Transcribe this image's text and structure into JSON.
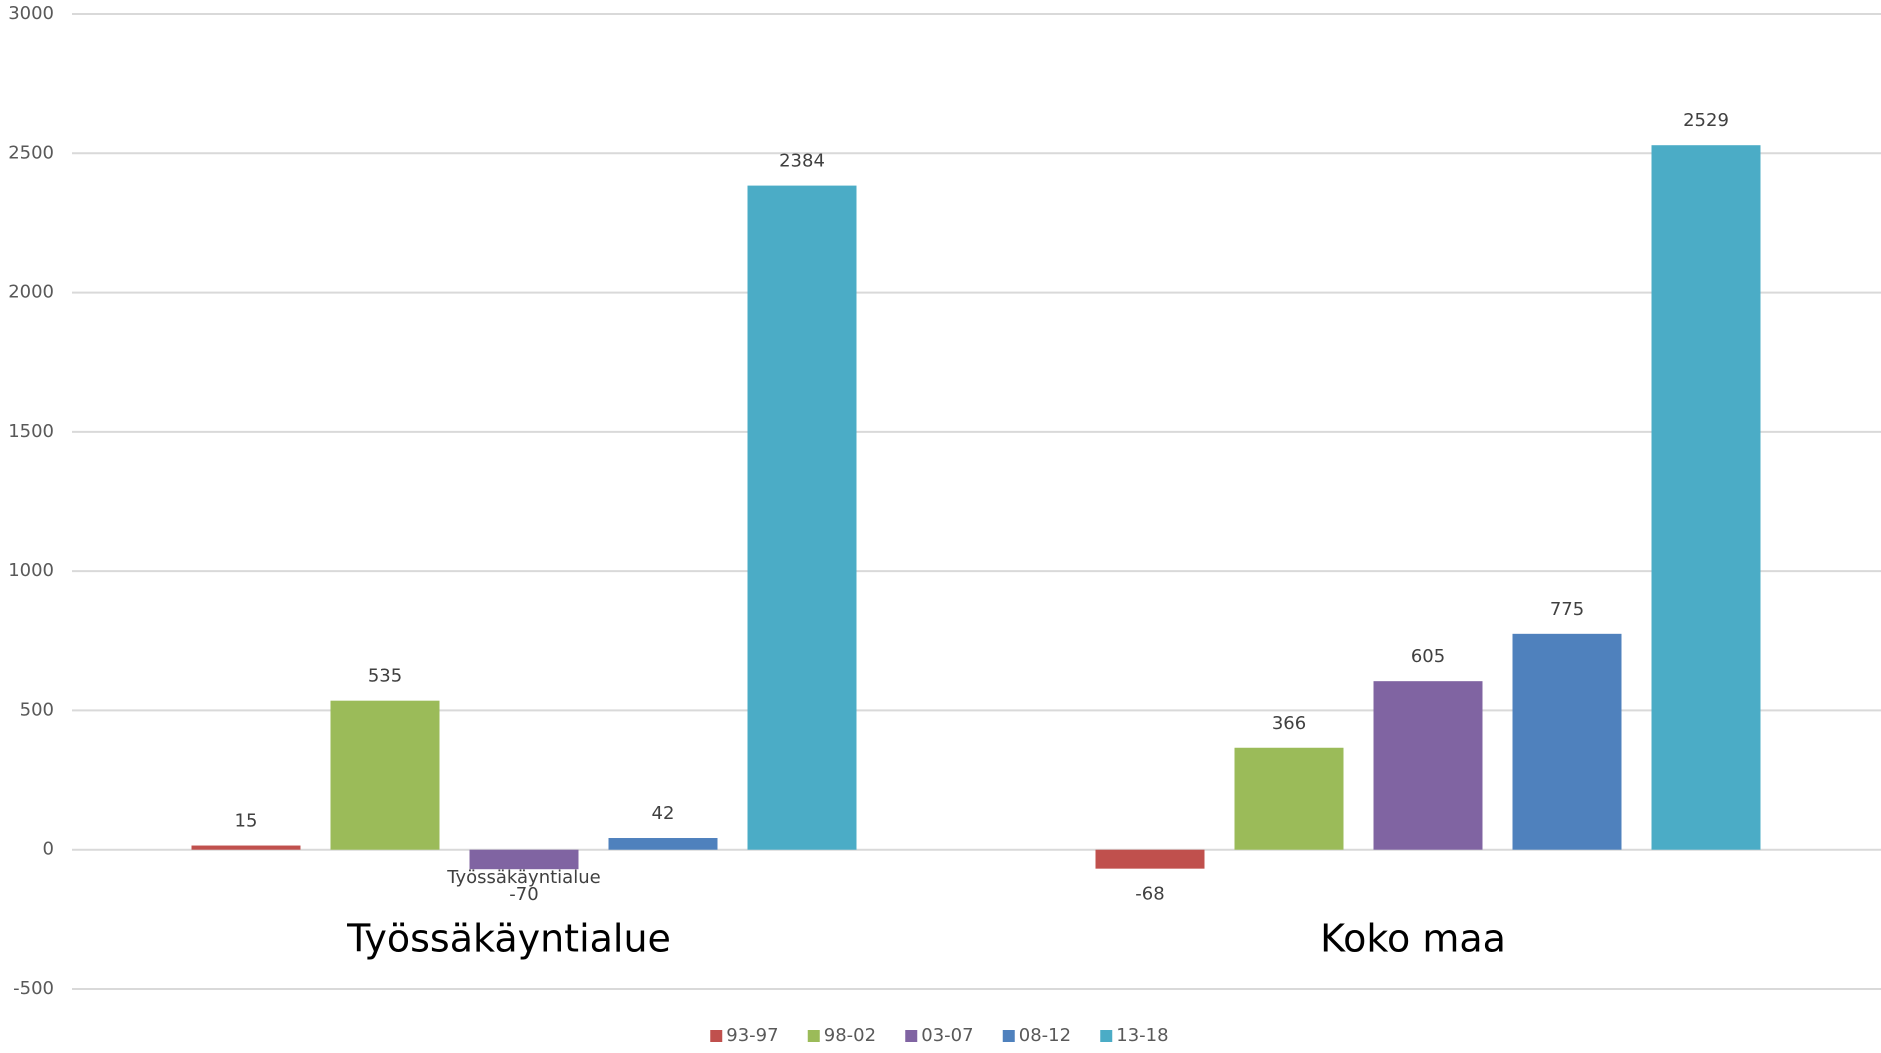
{
  "chart_data": {
    "type": "bar",
    "categories": [
      "Työssäkäyntialue",
      "Koko maa"
    ],
    "annotation": "Työssäkäyntialue",
    "series": [
      {
        "name": "93-97",
        "color": "#c0504d",
        "values": [
          15,
          -68
        ]
      },
      {
        "name": "98-02",
        "color": "#9bbb59",
        "values": [
          535,
          366
        ]
      },
      {
        "name": "03-07",
        "color": "#8064a2",
        "values": [
          -70,
          605
        ]
      },
      {
        "name": "08-12",
        "color": "#4f81bd",
        "values": [
          42,
          775
        ]
      },
      {
        "name": "13-18",
        "color": "#4bacc6",
        "values": [
          2384,
          2529
        ]
      }
    ],
    "ylim": [
      -500,
      3000
    ],
    "yticks": [
      -500,
      0,
      500,
      1000,
      1500,
      2000,
      2500,
      3000
    ],
    "grid": true,
    "legend": "bottom"
  }
}
